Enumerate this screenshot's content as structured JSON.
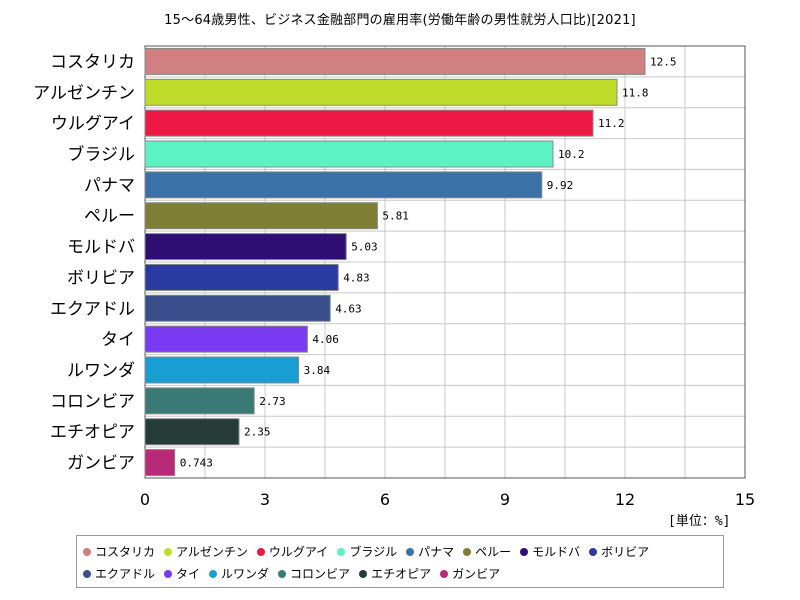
{
  "chart_data": {
    "type": "bar",
    "orientation": "horizontal",
    "title": "15～64歳男性、ビジネス金融部門の雇用率(労働年齢の男性就労人口比)[2021]",
    "unit_label": "[単位：%]",
    "xlim": [
      0,
      15
    ],
    "x_ticks": [
      "0",
      "3",
      "6",
      "9",
      "12",
      "15"
    ],
    "grid": true,
    "legend_position": "bottom",
    "categories": [
      "コスタリカ",
      "アルゼンチン",
      "ウルグアイ",
      "ブラジル",
      "パナマ",
      "ペルー",
      "モルドバ",
      "ボリビア",
      "エクアドル",
      "タイ",
      "ルワンダ",
      "コロンビア",
      "エチオピア",
      "ガンビア"
    ],
    "values": [
      12.5,
      11.8,
      11.2,
      10.2,
      9.92,
      5.81,
      5.03,
      4.83,
      4.63,
      4.06,
      3.84,
      2.73,
      2.35,
      0.743
    ],
    "value_labels": [
      "12.5",
      "11.8",
      "11.2",
      "10.2",
      "9.92",
      "5.81",
      "5.03",
      "4.83",
      "4.63",
      "4.06",
      "3.84",
      "2.73",
      "2.35",
      "0.743"
    ],
    "colors": [
      "#d08080",
      "#c0dc2a",
      "#ee1844",
      "#5cf2c4",
      "#3a72a8",
      "#7e7e34",
      "#2e0e72",
      "#2a3aa0",
      "#3a4e8c",
      "#7a3af2",
      "#189ed2",
      "#3a7a76",
      "#263c36",
      "#b82a78"
    ]
  }
}
